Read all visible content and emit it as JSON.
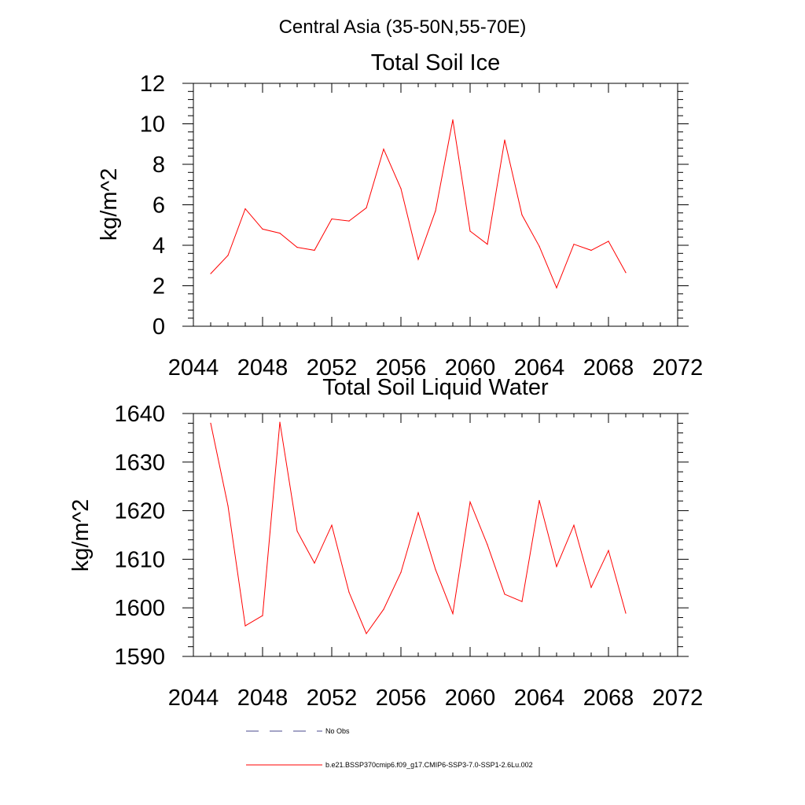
{
  "main_title": "Central Asia (35-50N,55-70E)",
  "colors": {
    "model": "#ff0000",
    "obs": "#4a4a8c",
    "axis": "#000000"
  },
  "legend": [
    {
      "label": "No Obs",
      "style": "dashed",
      "color": "#4a4a8c"
    },
    {
      "label": "b.e21.BSSP370cmip6.f09_g17.CMIP6-SSP3-7.0-SSP1-2.6Lu.002",
      "style": "solid",
      "color": "#ff0000"
    }
  ],
  "chart_data": [
    {
      "type": "line",
      "title": "Total Soil Ice",
      "ylabel": "kg/m^2",
      "xlabel": "",
      "xlim": [
        2044,
        2072
      ],
      "ylim": [
        0,
        12
      ],
      "xticks": [
        2044,
        2048,
        2052,
        2056,
        2060,
        2064,
        2068,
        2072
      ],
      "yticks": [
        0,
        2,
        4,
        6,
        8,
        10,
        12
      ],
      "grid": false,
      "series": [
        {
          "name": "b.e21.BSSP370cmip6.f09_g17.CMIP6-SSP3-7.0-SSP1-2.6Lu.002",
          "x": [
            2045,
            2046,
            2047,
            2048,
            2049,
            2050,
            2051,
            2052,
            2053,
            2054,
            2055,
            2056,
            2057,
            2058,
            2059,
            2060,
            2061,
            2062,
            2063,
            2064,
            2065,
            2066,
            2067,
            2068,
            2069
          ],
          "values": [
            2.6,
            3.5,
            5.8,
            4.8,
            4.6,
            3.9,
            3.75,
            5.3,
            5.2,
            5.85,
            8.75,
            6.8,
            3.3,
            5.7,
            10.2,
            4.7,
            4.05,
            9.2,
            5.5,
            3.95,
            1.9,
            4.05,
            3.75,
            4.2,
            2.65
          ]
        }
      ]
    },
    {
      "type": "line",
      "title": "Total Soil Liquid Water",
      "ylabel": "kg/m^2",
      "xlabel": "",
      "xlim": [
        2044,
        2072
      ],
      "ylim": [
        1590,
        1640
      ],
      "xticks": [
        2044,
        2048,
        2052,
        2056,
        2060,
        2064,
        2068,
        2072
      ],
      "yticks": [
        1590,
        1600,
        1610,
        1620,
        1630,
        1640
      ],
      "grid": false,
      "series": [
        {
          "name": "b.e21.BSSP370cmip6.f09_g17.CMIP6-SSP3-7.0-SSP1-2.6Lu.002",
          "x": [
            2045,
            2046,
            2047,
            2048,
            2049,
            2050,
            2051,
            2052,
            2053,
            2054,
            2055,
            2056,
            2057,
            2058,
            2059,
            2060,
            2061,
            2062,
            2063,
            2064,
            2065,
            2066,
            2067,
            2068,
            2069
          ],
          "values": [
            1638,
            1621,
            1596.3,
            1598.4,
            1638.2,
            1615.8,
            1609.2,
            1617,
            1603.2,
            1594.7,
            1599.7,
            1607.3,
            1619.6,
            1607.9,
            1598.8,
            1621.8,
            1613,
            1602.8,
            1601.3,
            1622.1,
            1608.5,
            1617,
            1604.2,
            1611.8,
            1598.9
          ]
        }
      ]
    }
  ]
}
